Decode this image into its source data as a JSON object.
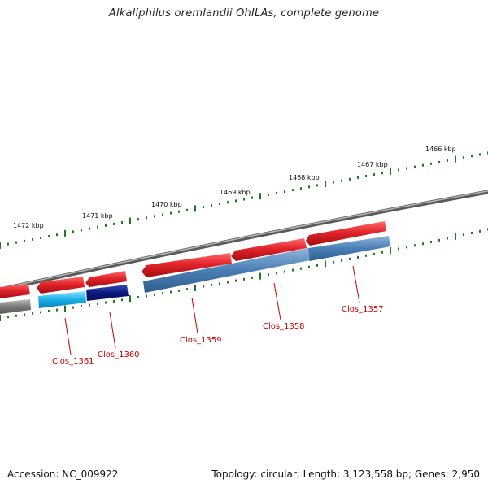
{
  "title": "Alkaliphilus oremlandii OhILAs, complete genome",
  "ruler": {
    "labels": [
      "1466 kbp",
      "1467 kbp",
      "1468 kbp",
      "1469 kbp",
      "1470 kbp",
      "1471 kbp",
      "1472 kbp"
    ],
    "tick_color": "#1f7a1f"
  },
  "genes": [
    {
      "name": "Clos_1357",
      "strand_color": "#e3242b",
      "track_color": "#4a7fb5"
    },
    {
      "name": "Clos_1358",
      "strand_color": "#e3242b",
      "track_color": "#4a7fb5"
    },
    {
      "name": "Clos_1359",
      "strand_color": "#e3242b",
      "track_color": "#4a7fb5"
    },
    {
      "name": "Clos_1360",
      "strand_color": "#e3242b",
      "track_color": "#0a1a80"
    },
    {
      "name": "Clos_1361",
      "strand_color": "#e3242b",
      "track_color": "#1ab0e8"
    }
  ],
  "label_color": "#cc0000",
  "footer": {
    "accession": "Accession: NC_009922",
    "stats": "Topology: circular; Length: 3,123,558 bp; Genes: 2,950"
  }
}
